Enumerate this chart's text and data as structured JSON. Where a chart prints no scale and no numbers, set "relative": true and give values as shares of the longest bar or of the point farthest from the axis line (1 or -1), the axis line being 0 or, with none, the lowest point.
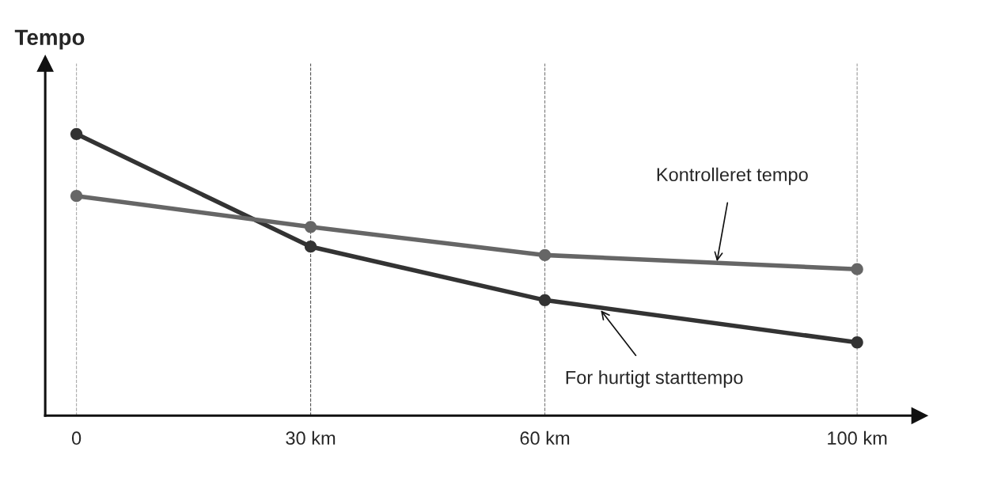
{
  "chart_data": {
    "type": "line",
    "relative": true,
    "ylabel": "Tempo",
    "x": [
      0,
      30,
      60,
      100
    ],
    "xlim": [
      -4,
      108
    ],
    "xticks": [
      0,
      {
        "value": 30,
        "label": "30 km"
      },
      {
        "value": 60,
        "label": "60 km"
      },
      {
        "value": 100,
        "label": "100 km"
      }
    ],
    "series": [
      {
        "color": "#333333",
        "values": [
          1,
          0.6,
          0.41,
          0.26
        ]
      },
      {
        "color": "#666666",
        "values": [
          0.78,
          0.67,
          0.57,
          0.52
        ]
      }
    ],
    "marker": "circle",
    "line_style": "solid",
    "grid": false,
    "legend": false,
    "ref_lines": [
      {
        "axis": "x",
        "value": 0,
        "line_style": "dashed",
        "color": "#aaaaaa"
      },
      {
        "axis": "x",
        "value": 30,
        "line_style": "dashed",
        "color": "#555555"
      },
      {
        "axis": "x",
        "value": 60,
        "line_style": "dashed",
        "color": "#777777"
      },
      {
        "axis": "x",
        "value": 100,
        "line_style": "dashed",
        "color": "#999999"
      }
    ],
    "annotations": [
      {
        "text": "Kontrolleret tempo",
        "x": 82,
        "y": 0.54
      },
      {
        "text": "For hurtigt starttempo",
        "x": 67,
        "y": 0.38
      }
    ]
  }
}
